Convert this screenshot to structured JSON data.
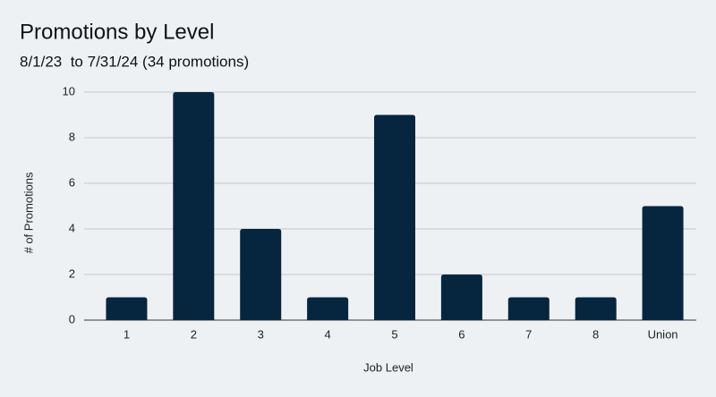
{
  "chart_data": {
    "type": "bar",
    "title": "Promotions by Level",
    "subtitle": "8/1/23  to 7/31/24 (34 promotions)",
    "x_label": "Job Level",
    "y_label": "# of Promotions",
    "categories": [
      "1",
      "2",
      "3",
      "4",
      "5",
      "6",
      "7",
      "8",
      "Union"
    ],
    "values": [
      1,
      10,
      4,
      1,
      9,
      2,
      1,
      1,
      5
    ],
    "color": "#062640",
    "ylim": [
      0,
      10
    ],
    "yticks": [
      0,
      2,
      4,
      6,
      8,
      10
    ],
    "grid": true
  }
}
